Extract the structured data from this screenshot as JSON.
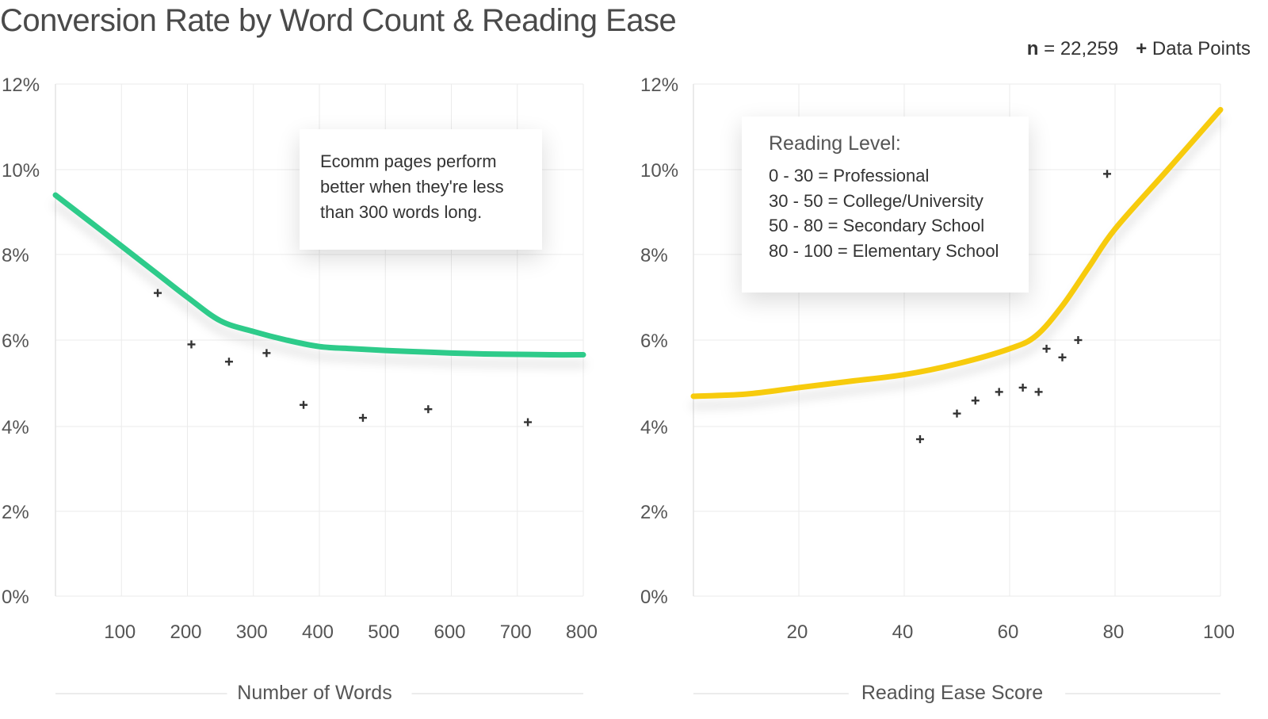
{
  "page": {
    "title": "Conversion Rate by Word Count & Reading Ease",
    "sample": {
      "label": "n",
      "text": " = 22,259"
    },
    "legend_marker": {
      "symbol": "+",
      "label": "Data Points"
    }
  },
  "colors": {
    "left_curve": "#2ecb8a",
    "right_curve": "#f7cb0c",
    "markers": "#333333",
    "grid": "#ebebeb"
  },
  "notes": {
    "left": "Ecomm pages perform better when they're less than 300 words long.",
    "right": {
      "title": "Reading Level:",
      "rows": [
        "0 - 30 = Professional",
        "30 - 50 = College/University",
        "50 - 80 = Secondary School",
        "80 - 100 = Elementary School"
      ]
    }
  },
  "chart_data": [
    {
      "type": "scatter",
      "title": "",
      "xlabel": "Number of Words",
      "ylabel": "",
      "xlim": [
        0,
        800
      ],
      "ylim": [
        0,
        12
      ],
      "x_ticks": [
        100,
        200,
        300,
        400,
        500,
        600,
        700,
        800
      ],
      "y_ticks": [
        0,
        2,
        4,
        6,
        8,
        10,
        12
      ],
      "y_tick_labels": [
        "0%",
        "2%",
        "4%",
        "6%",
        "8%",
        "10%",
        "12%"
      ],
      "grid": true,
      "points": [
        [
          155,
          7.1
        ],
        [
          206,
          5.9
        ],
        [
          263,
          5.5
        ],
        [
          320,
          5.7
        ],
        [
          376,
          4.5
        ],
        [
          466,
          4.2
        ],
        [
          565,
          4.4
        ],
        [
          716,
          4.1
        ]
      ],
      "trend": {
        "x": [
          0,
          50,
          100,
          150,
          200,
          250,
          300,
          350,
          400,
          450,
          500,
          550,
          600,
          650,
          700,
          750,
          800
        ],
        "y": [
          9.4,
          8.8,
          8.2,
          7.6,
          7.0,
          6.45,
          6.2,
          6.0,
          5.85,
          5.8,
          5.76,
          5.73,
          5.7,
          5.68,
          5.67,
          5.66,
          5.66
        ]
      }
    },
    {
      "type": "scatter",
      "title": "",
      "xlabel": "Reading Ease Score",
      "ylabel": "",
      "xlim": [
        0,
        100
      ],
      "ylim": [
        0,
        12
      ],
      "x_ticks": [
        20,
        40,
        60,
        80,
        100
      ],
      "y_ticks": [
        0,
        2,
        4,
        6,
        8,
        10,
        12
      ],
      "y_tick_labels": [
        "0%",
        "2%",
        "4%",
        "6%",
        "8%",
        "10%",
        "12%"
      ],
      "grid": true,
      "points": [
        [
          43,
          3.7
        ],
        [
          50,
          4.3
        ],
        [
          53.5,
          4.6
        ],
        [
          58,
          4.8
        ],
        [
          62.5,
          4.9
        ],
        [
          65.5,
          4.8
        ],
        [
          67,
          5.8
        ],
        [
          70,
          5.6
        ],
        [
          73,
          6.0
        ],
        [
          78.5,
          9.9
        ]
      ],
      "trend": {
        "x": [
          0,
          10,
          20,
          30,
          40,
          50,
          60,
          65,
          70,
          75,
          80,
          90,
          100
        ],
        "y": [
          4.7,
          4.75,
          4.9,
          5.05,
          5.2,
          5.45,
          5.8,
          6.1,
          6.8,
          7.7,
          8.6,
          10.0,
          11.4
        ]
      }
    }
  ]
}
